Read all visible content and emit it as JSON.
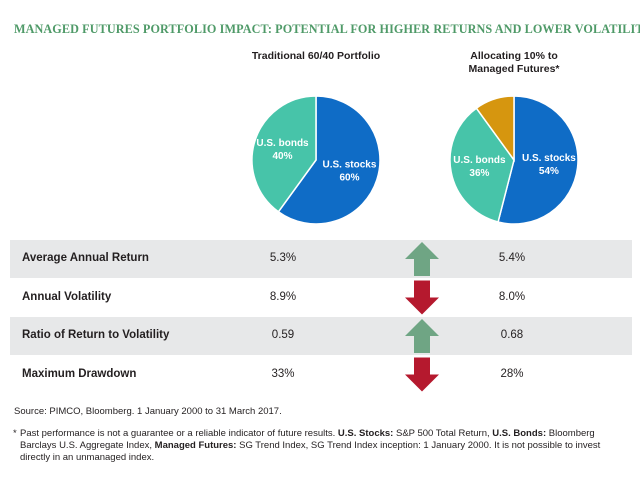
{
  "title": "MANAGED FUTURES PORTFOLIO IMPACT: POTENTIAL FOR HIGHER RETURNS AND LOWER VOLATILITY",
  "chart_data": [
    {
      "type": "pie",
      "title": "Traditional 60/40 Portfolio",
      "categories": [
        "U.S. stocks",
        "U.S. bonds"
      ],
      "values": [
        60,
        40
      ],
      "value_labels": [
        "60%",
        "40%"
      ],
      "colors": [
        "#0f6cc6",
        "#47c4a9"
      ]
    },
    {
      "type": "pie",
      "title": "Allocating 10% to Managed Futures*",
      "categories": [
        "U.S. stocks",
        "U.S. bonds",
        null
      ],
      "values": [
        54,
        36,
        10
      ],
      "value_labels": [
        "54%",
        "36%",
        null
      ],
      "colors": [
        "#0f6cc6",
        "#47c4a9",
        "#d6960f"
      ]
    }
  ],
  "table": {
    "rows": [
      [
        "Average Annual Return",
        "5.3%",
        "5.4%"
      ],
      [
        "Annual Volatility",
        "8.9%",
        "8.0%"
      ],
      [
        "Ratio of Return to Volatility",
        "0.59",
        "0.68"
      ],
      [
        "Maximum Drawdown",
        "33%",
        "28%"
      ]
    ]
  },
  "source": "Source: PIMCO, Bloomberg. 1 January 2000 to 31 March 2017.",
  "footnote": {
    "marker": "*",
    "parts": [
      {
        "text": "Past performance is not a guarantee or a reliable indicator of future results. ",
        "bold": false
      },
      {
        "text": "U.S. Stocks:",
        "bold": true
      },
      {
        "text": " S&P 500 Total Return, ",
        "bold": false
      },
      {
        "text": "U.S. Bonds:",
        "bold": true
      },
      {
        "text": " Bloomberg Barclays U.S. Aggregate Index, ",
        "bold": false
      },
      {
        "text": "Managed Futures:",
        "bold": true
      },
      {
        "text": " SG Trend Index, SG Trend Index inception: 1 January 2000. It is not possible to invest directly in an unmanaged index.",
        "bold": false
      }
    ]
  }
}
